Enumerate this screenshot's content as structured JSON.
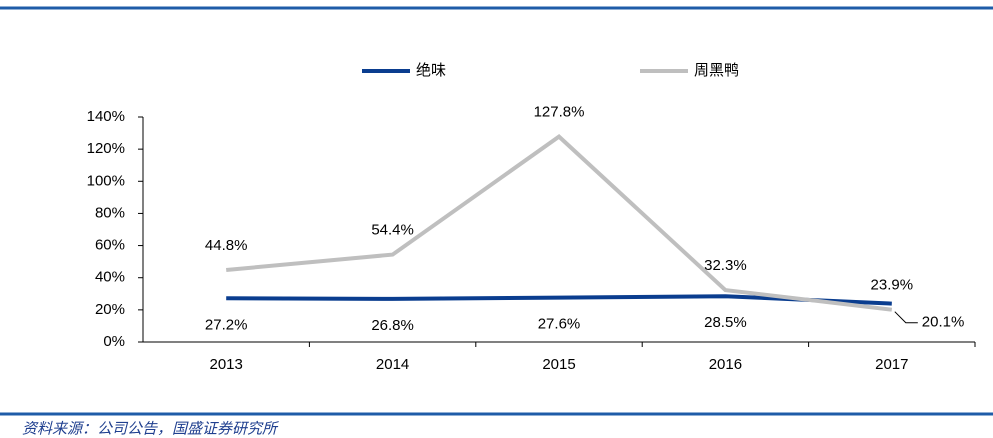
{
  "chart_data": {
    "type": "line",
    "categories": [
      "2013",
      "2014",
      "2015",
      "2016",
      "2017"
    ],
    "series": [
      {
        "name": "绝味",
        "color": "#0a3d8f",
        "values": [
          27.2,
          26.8,
          27.6,
          28.5,
          23.9
        ],
        "value_labels": [
          "27.2%",
          "26.8%",
          "27.6%",
          "28.5%",
          "23.9%"
        ]
      },
      {
        "name": "周黑鸭",
        "color": "#bfbfbf",
        "values": [
          44.8,
          54.4,
          127.8,
          32.3,
          20.1
        ],
        "value_labels": [
          "44.8%",
          "54.4%",
          "127.8%",
          "32.3%",
          "20.1%"
        ]
      }
    ],
    "ylim": [
      0,
      140
    ],
    "yticks": [
      {
        "value": 0,
        "label": "0%"
      },
      {
        "value": 20,
        "label": "20%"
      },
      {
        "value": 40,
        "label": "40%"
      },
      {
        "value": 60,
        "label": "60%"
      },
      {
        "value": 80,
        "label": "80%"
      },
      {
        "value": 100,
        "label": "100%"
      },
      {
        "value": 120,
        "label": "120%"
      },
      {
        "value": 140,
        "label": "140%"
      }
    ],
    "grid": false,
    "legend": "top",
    "source": "资料来源：公司公告，国盛证券研究所"
  }
}
